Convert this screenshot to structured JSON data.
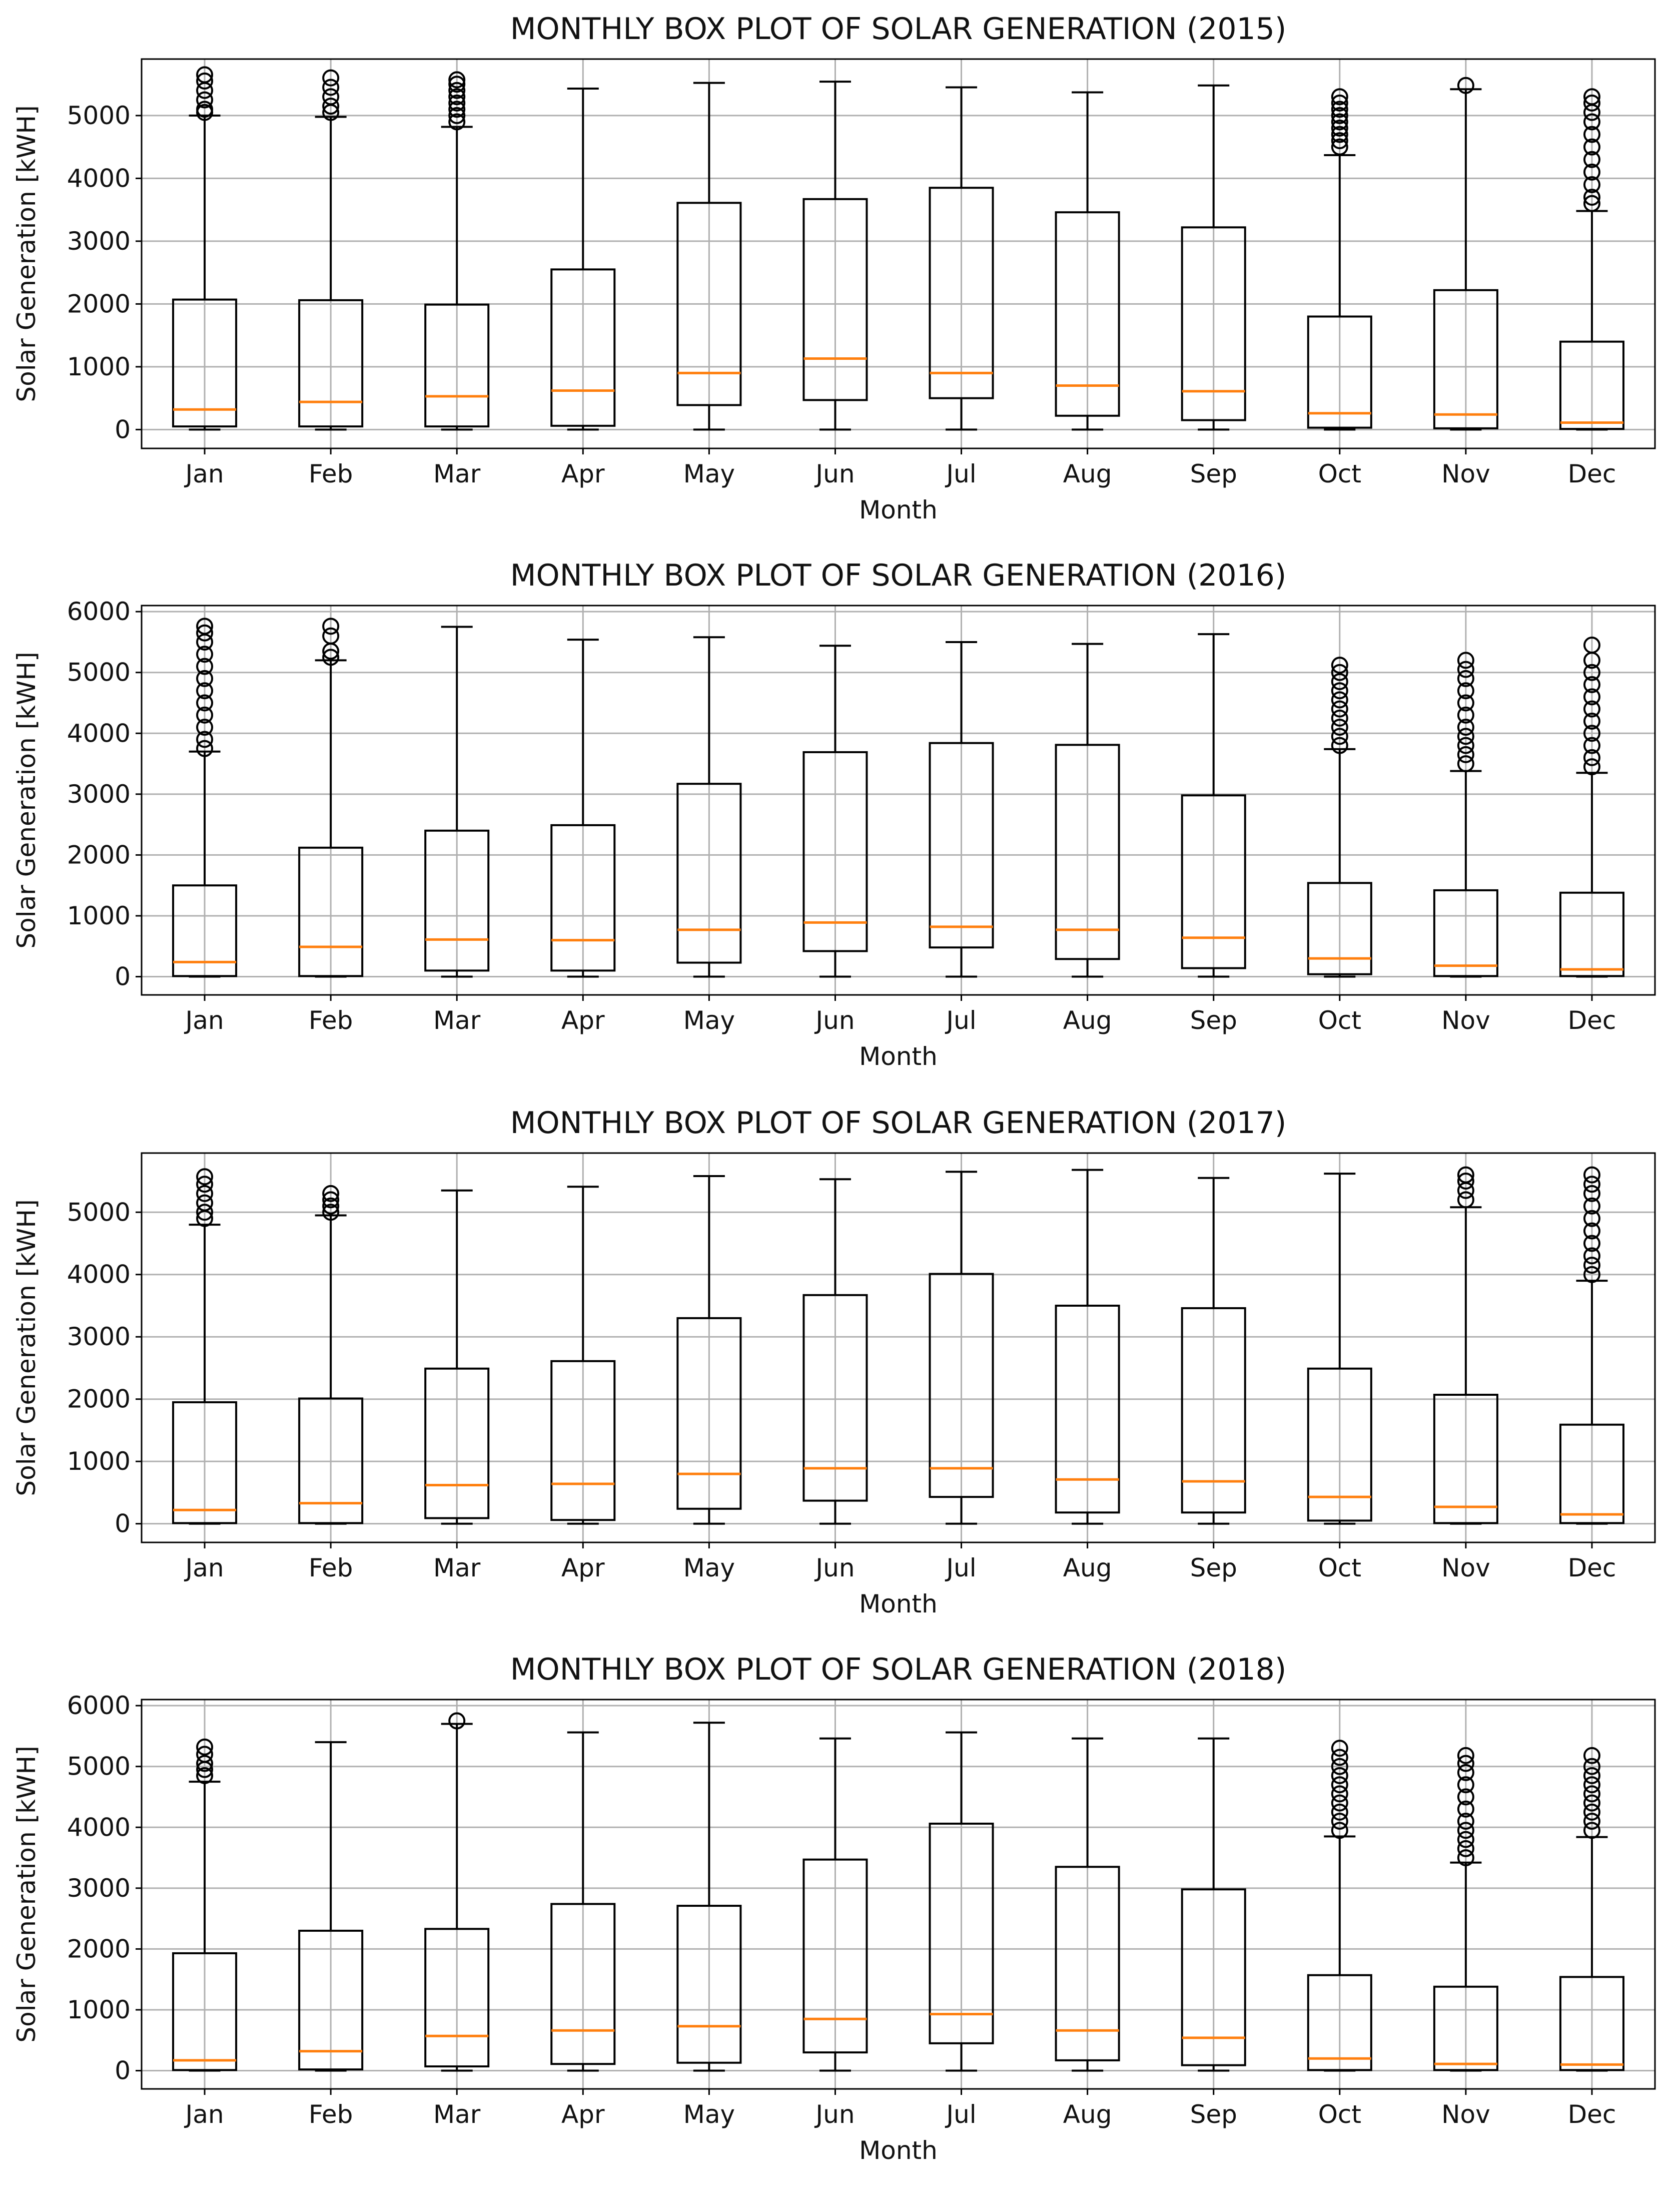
{
  "chart_data": [
    {
      "type": "boxplot",
      "title": "MONTHLY BOX PLOT OF SOLAR GENERATION (2015)",
      "xlabel": "Month",
      "ylabel": "Solar Generation [kWH]",
      "ylim": [
        -300,
        5900
      ],
      "yticks": [
        0,
        1000,
        2000,
        3000,
        4000,
        5000
      ],
      "grid": true,
      "categories": [
        "Jan",
        "Feb",
        "Mar",
        "Apr",
        "May",
        "Jun",
        "Jul",
        "Aug",
        "Sep",
        "Oct",
        "Nov",
        "Dec"
      ],
      "boxes": [
        {
          "whislo": 0,
          "q1": 50,
          "med": 320,
          "q3": 2070,
          "whishi": 5000,
          "fliers": [
            5050,
            5100,
            5250,
            5400,
            5550,
            5650
          ]
        },
        {
          "whislo": 0,
          "q1": 50,
          "med": 440,
          "q3": 2060,
          "whishi": 4980,
          "fliers": [
            5050,
            5150,
            5300,
            5450,
            5600
          ]
        },
        {
          "whislo": 0,
          "q1": 50,
          "med": 530,
          "q3": 1990,
          "whishi": 4820,
          "fliers": [
            4900,
            5000,
            5100,
            5200,
            5300,
            5400,
            5500,
            5570
          ]
        },
        {
          "whislo": 0,
          "q1": 60,
          "med": 620,
          "q3": 2550,
          "whishi": 5430,
          "fliers": []
        },
        {
          "whislo": 0,
          "q1": 390,
          "med": 900,
          "q3": 3610,
          "whishi": 5520,
          "fliers": []
        },
        {
          "whislo": 0,
          "q1": 470,
          "med": 1130,
          "q3": 3670,
          "whishi": 5540,
          "fliers": []
        },
        {
          "whislo": 0,
          "q1": 500,
          "med": 900,
          "q3": 3850,
          "whishi": 5450,
          "fliers": []
        },
        {
          "whislo": 0,
          "q1": 220,
          "med": 700,
          "q3": 3460,
          "whishi": 5370,
          "fliers": []
        },
        {
          "whislo": 0,
          "q1": 150,
          "med": 610,
          "q3": 3220,
          "whishi": 5480,
          "fliers": []
        },
        {
          "whislo": 0,
          "q1": 30,
          "med": 260,
          "q3": 1800,
          "whishi": 4370,
          "fliers": [
            4500,
            4600,
            4700,
            4800,
            4900,
            5000,
            5100,
            5200,
            5300
          ]
        },
        {
          "whislo": 0,
          "q1": 20,
          "med": 240,
          "q3": 2220,
          "whishi": 5420,
          "fliers": [
            5480
          ]
        },
        {
          "whislo": 0,
          "q1": 10,
          "med": 110,
          "q3": 1400,
          "whishi": 3480,
          "fliers": [
            3600,
            3700,
            3900,
            4100,
            4300,
            4500,
            4700,
            4900,
            5050,
            5200,
            5300
          ]
        }
      ]
    },
    {
      "type": "boxplot",
      "title": "MONTHLY BOX PLOT OF SOLAR GENERATION (2016)",
      "xlabel": "Month",
      "ylabel": "Solar Generation [kWH]",
      "ylim": [
        -300,
        6100
      ],
      "yticks": [
        0,
        1000,
        2000,
        3000,
        4000,
        5000,
        6000
      ],
      "grid": true,
      "categories": [
        "Jan",
        "Feb",
        "Mar",
        "Apr",
        "May",
        "Jun",
        "Jul",
        "Aug",
        "Sep",
        "Oct",
        "Nov",
        "Dec"
      ],
      "boxes": [
        {
          "whislo": 0,
          "q1": 10,
          "med": 240,
          "q3": 1500,
          "whishi": 3700,
          "fliers": [
            3750,
            3900,
            4100,
            4300,
            4500,
            4700,
            4900,
            5100,
            5300,
            5500,
            5650,
            5760
          ]
        },
        {
          "whislo": 0,
          "q1": 10,
          "med": 490,
          "q3": 2120,
          "whishi": 5200,
          "fliers": [
            5250,
            5350,
            5600,
            5760
          ]
        },
        {
          "whislo": 0,
          "q1": 100,
          "med": 610,
          "q3": 2400,
          "whishi": 5750,
          "fliers": []
        },
        {
          "whislo": 0,
          "q1": 100,
          "med": 600,
          "q3": 2490,
          "whishi": 5540,
          "fliers": []
        },
        {
          "whislo": 0,
          "q1": 230,
          "med": 770,
          "q3": 3170,
          "whishi": 5580,
          "fliers": []
        },
        {
          "whislo": 0,
          "q1": 420,
          "med": 890,
          "q3": 3690,
          "whishi": 5440,
          "fliers": []
        },
        {
          "whislo": 0,
          "q1": 480,
          "med": 820,
          "q3": 3840,
          "whishi": 5500,
          "fliers": []
        },
        {
          "whislo": 0,
          "q1": 290,
          "med": 770,
          "q3": 3810,
          "whishi": 5470,
          "fliers": []
        },
        {
          "whislo": 0,
          "q1": 140,
          "med": 640,
          "q3": 2980,
          "whishi": 5630,
          "fliers": []
        },
        {
          "whislo": 0,
          "q1": 40,
          "med": 300,
          "q3": 1540,
          "whishi": 3740,
          "fliers": [
            3800,
            3950,
            4100,
            4250,
            4400,
            4550,
            4700,
            4850,
            5000,
            5120
          ]
        },
        {
          "whislo": 0,
          "q1": 10,
          "med": 180,
          "q3": 1420,
          "whishi": 3380,
          "fliers": [
            3500,
            3650,
            3800,
            3950,
            4100,
            4300,
            4500,
            4700,
            4900,
            5050,
            5200
          ]
        },
        {
          "whislo": 0,
          "q1": 10,
          "med": 120,
          "q3": 1380,
          "whishi": 3350,
          "fliers": [
            3450,
            3600,
            3800,
            4000,
            4200,
            4400,
            4600,
            4800,
            5000,
            5200,
            5450
          ]
        }
      ]
    },
    {
      "type": "boxplot",
      "title": "MONTHLY BOX PLOT OF SOLAR GENERATION (2017)",
      "xlabel": "Month",
      "ylabel": "Solar Generation [kWH]",
      "ylim": [
        -300,
        5950
      ],
      "yticks": [
        0,
        1000,
        2000,
        3000,
        4000,
        5000
      ],
      "grid": true,
      "categories": [
        "Jan",
        "Feb",
        "Mar",
        "Apr",
        "May",
        "Jun",
        "Jul",
        "Aug",
        "Sep",
        "Oct",
        "Nov",
        "Dec"
      ],
      "boxes": [
        {
          "whislo": 0,
          "q1": 10,
          "med": 220,
          "q3": 1950,
          "whishi": 4800,
          "fliers": [
            4900,
            5000,
            5150,
            5300,
            5450,
            5570
          ]
        },
        {
          "whislo": 0,
          "q1": 10,
          "med": 330,
          "q3": 2010,
          "whishi": 4950,
          "fliers": [
            5000,
            5100,
            5200,
            5300
          ]
        },
        {
          "whislo": 0,
          "q1": 90,
          "med": 620,
          "q3": 2490,
          "whishi": 5350,
          "fliers": []
        },
        {
          "whislo": 0,
          "q1": 60,
          "med": 640,
          "q3": 2610,
          "whishi": 5410,
          "fliers": []
        },
        {
          "whislo": 0,
          "q1": 240,
          "med": 800,
          "q3": 3300,
          "whishi": 5580,
          "fliers": []
        },
        {
          "whislo": 0,
          "q1": 370,
          "med": 890,
          "q3": 3670,
          "whishi": 5530,
          "fliers": []
        },
        {
          "whislo": 0,
          "q1": 430,
          "med": 890,
          "q3": 4010,
          "whishi": 5650,
          "fliers": []
        },
        {
          "whislo": 0,
          "q1": 180,
          "med": 710,
          "q3": 3500,
          "whishi": 5680,
          "fliers": []
        },
        {
          "whislo": 0,
          "q1": 180,
          "med": 680,
          "q3": 3460,
          "whishi": 5550,
          "fliers": []
        },
        {
          "whislo": 0,
          "q1": 50,
          "med": 430,
          "q3": 2490,
          "whishi": 5620,
          "fliers": []
        },
        {
          "whislo": 0,
          "q1": 10,
          "med": 270,
          "q3": 2070,
          "whishi": 5080,
          "fliers": [
            5200,
            5350,
            5500,
            5600
          ]
        },
        {
          "whislo": 0,
          "q1": 10,
          "med": 150,
          "q3": 1590,
          "whishi": 3900,
          "fliers": [
            4000,
            4150,
            4300,
            4500,
            4700,
            4900,
            5100,
            5300,
            5450,
            5600
          ]
        }
      ]
    },
    {
      "type": "boxplot",
      "title": "MONTHLY BOX PLOT OF SOLAR GENERATION (2018)",
      "xlabel": "Month",
      "ylabel": "Solar Generation [kWH]",
      "ylim": [
        -300,
        6100
      ],
      "yticks": [
        0,
        1000,
        2000,
        3000,
        4000,
        5000,
        6000
      ],
      "grid": true,
      "categories": [
        "Jan",
        "Feb",
        "Mar",
        "Apr",
        "May",
        "Jun",
        "Jul",
        "Aug",
        "Sep",
        "Oct",
        "Nov",
        "Dec"
      ],
      "boxes": [
        {
          "whislo": 0,
          "q1": 10,
          "med": 170,
          "q3": 1930,
          "whishi": 4750,
          "fliers": [
            4850,
            4950,
            5050,
            5200,
            5320
          ]
        },
        {
          "whislo": 0,
          "q1": 20,
          "med": 320,
          "q3": 2300,
          "whishi": 5400,
          "fliers": []
        },
        {
          "whislo": 0,
          "q1": 70,
          "med": 570,
          "q3": 2330,
          "whishi": 5700,
          "fliers": [
            5750
          ]
        },
        {
          "whislo": 0,
          "q1": 110,
          "med": 660,
          "q3": 2740,
          "whishi": 5560,
          "fliers": []
        },
        {
          "whislo": 0,
          "q1": 130,
          "med": 730,
          "q3": 2710,
          "whishi": 5720,
          "fliers": []
        },
        {
          "whislo": 0,
          "q1": 300,
          "med": 850,
          "q3": 3470,
          "whishi": 5460,
          "fliers": []
        },
        {
          "whislo": 0,
          "q1": 450,
          "med": 930,
          "q3": 4060,
          "whishi": 5560,
          "fliers": []
        },
        {
          "whislo": 0,
          "q1": 170,
          "med": 660,
          "q3": 3350,
          "whishi": 5460,
          "fliers": []
        },
        {
          "whislo": 0,
          "q1": 90,
          "med": 540,
          "q3": 2980,
          "whishi": 5460,
          "fliers": []
        },
        {
          "whislo": 0,
          "q1": 10,
          "med": 200,
          "q3": 1570,
          "whishi": 3850,
          "fliers": [
            3950,
            4100,
            4250,
            4400,
            4550,
            4700,
            4850,
            5000,
            5150,
            5300
          ]
        },
        {
          "whislo": 0,
          "q1": 10,
          "med": 110,
          "q3": 1380,
          "whishi": 3420,
          "fliers": [
            3500,
            3650,
            3800,
            3950,
            4100,
            4300,
            4500,
            4700,
            4900,
            5050,
            5180
          ]
        },
        {
          "whislo": 0,
          "q1": 10,
          "med": 100,
          "q3": 1540,
          "whishi": 3840,
          "fliers": [
            3950,
            4100,
            4250,
            4400,
            4550,
            4700,
            4850,
            5000,
            5180
          ]
        }
      ]
    }
  ],
  "colors": {
    "box": "#000000",
    "median": "#ff7f0e",
    "grid": "#b0b0b0",
    "background": "#ffffff"
  }
}
